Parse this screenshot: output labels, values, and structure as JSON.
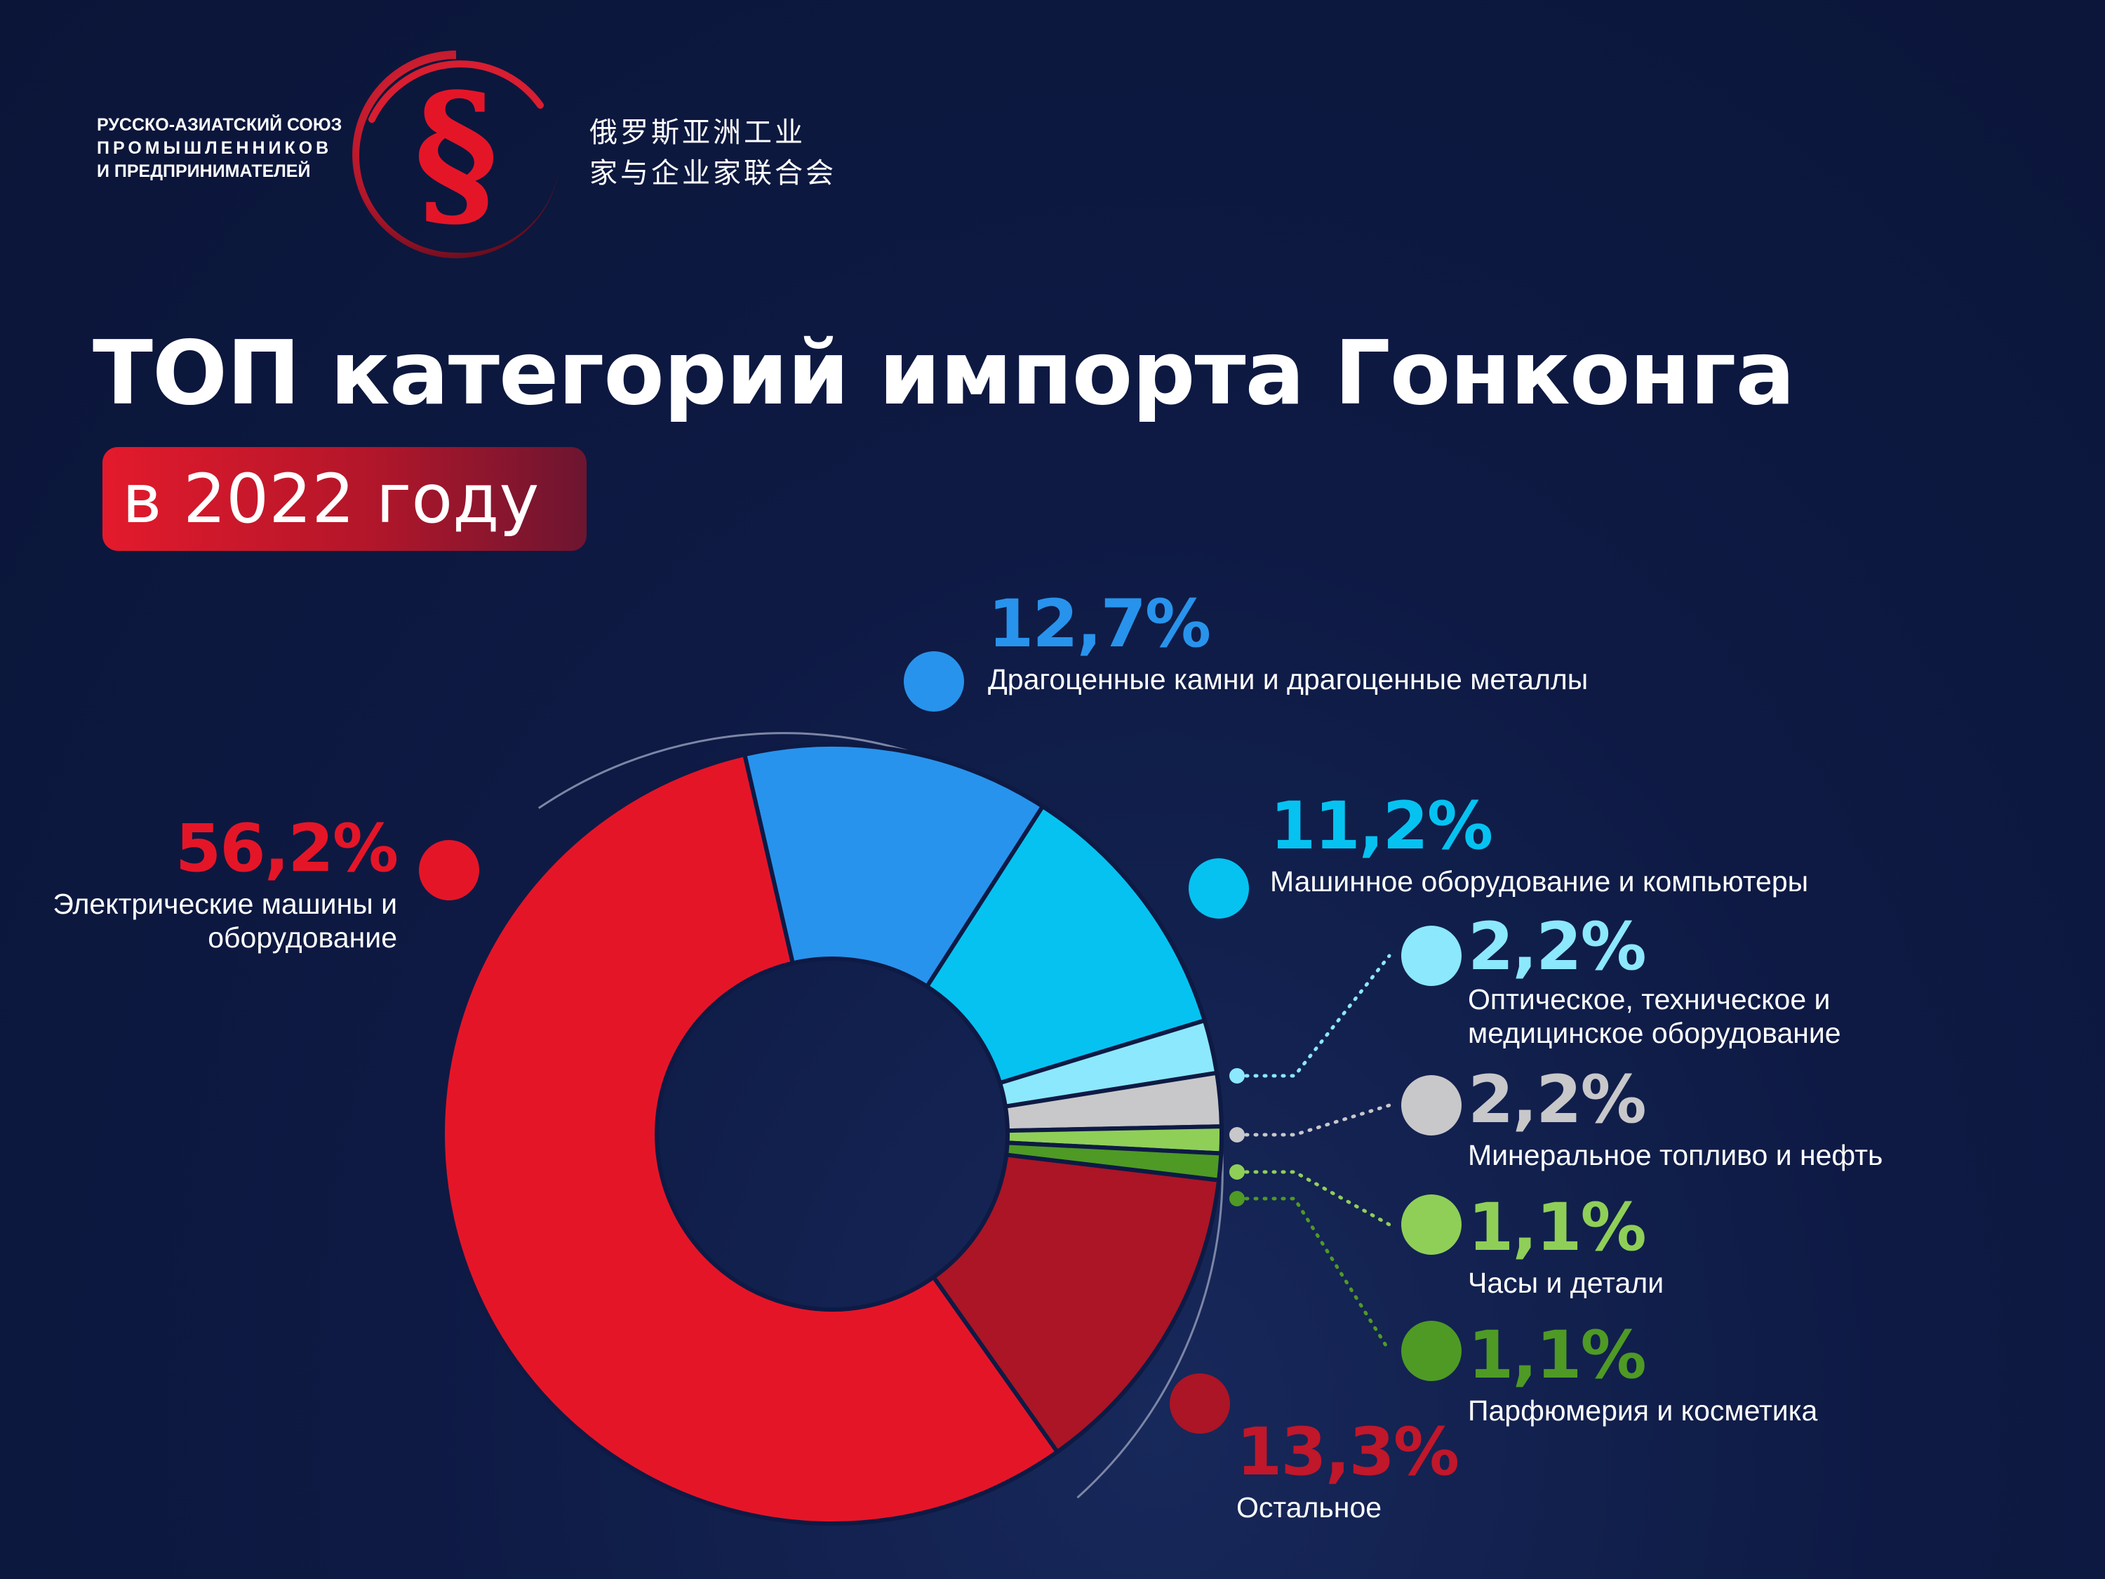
{
  "header": {
    "org_ru_lines": [
      "РУССКО-АЗИАТСКИЙ СОЮЗ",
      "ПРОМЫШЛЕННИКОВ",
      "И ПРЕДПРИНИМАТЕЛЕЙ"
    ],
    "org_cn_lines": [
      "俄罗斯亚洲工业",
      "家与企业家联合会"
    ],
    "logo_glyph": "§",
    "logo_icon": "section-sign-logo"
  },
  "title": "ТОП категорий импорта Гонконга",
  "subtitle": "в 2022 году",
  "colors": {
    "background": "#0e1a44",
    "brand_red": "#e31a2c"
  },
  "chart_data": {
    "type": "pie",
    "style": "donut",
    "slices": [
      {
        "label": "Драгоценные камни и драгоценные металлы",
        "value": 12.7,
        "value_text": "12,7%",
        "color": "#2893ec"
      },
      {
        "label": "Машинное оборудование и компьютеры",
        "value": 11.2,
        "value_text": "11,2%",
        "color": "#06c2f1"
      },
      {
        "label": "Оптическое, техническое и медицинское оборудование",
        "value": 2.2,
        "value_text": "2,2%",
        "color": "#8ce8fd"
      },
      {
        "label": "Минеральное топливо и нефть",
        "value": 2.2,
        "value_text": "2,2%",
        "color": "#c8c8ca"
      },
      {
        "label": "Часы и детали",
        "value": 1.1,
        "value_text": "1,1%",
        "color": "#8fcf58"
      },
      {
        "label": "Парфюмерия и косметика",
        "value": 1.1,
        "value_text": "1,1%",
        "color": "#4e9a25"
      },
      {
        "label": "Остальное",
        "value": 13.3,
        "value_text": "13,3%",
        "color": "#ab1526"
      },
      {
        "label": "Электрические машины и оборудование",
        "value": 56.2,
        "value_text": "56,2%",
        "color": "#e51528"
      }
    ]
  }
}
